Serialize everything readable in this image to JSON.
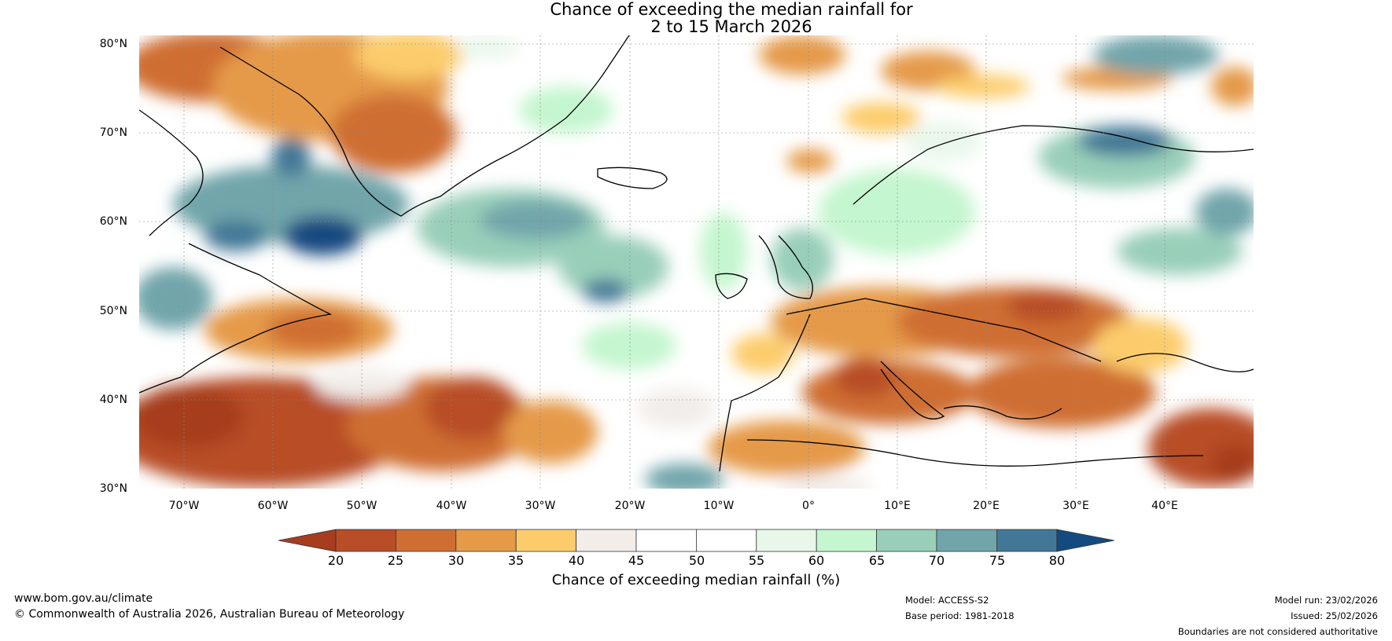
{
  "title": {
    "line1": "Chance of exceeding the median rainfall for",
    "line2": "2 to 15 March 2026"
  },
  "map": {
    "lat_labels": [
      "80°N",
      "70°N",
      "60°N",
      "50°N",
      "40°N",
      "30°N"
    ],
    "lon_labels": [
      "70°W",
      "60°W",
      "50°W",
      "40°W",
      "30°W",
      "20°W",
      "10°W",
      "0°",
      "10°E",
      "20°E",
      "30°E",
      "40°E"
    ],
    "extent": {
      "lon_min": -75,
      "lon_max": 50,
      "lat_min": 30,
      "lat_max": 81
    }
  },
  "legend": {
    "ticks": [
      "20",
      "25",
      "30",
      "35",
      "40",
      "45",
      "50",
      "55",
      "60",
      "65",
      "70",
      "75",
      "80"
    ],
    "colors": [
      "#a63d1f",
      "#b84e27",
      "#cf6e33",
      "#e59a48",
      "#fccc6c",
      "#f2ede9",
      "#ffffff",
      "#ffffff",
      "#e9f7eb",
      "#c4f6cf",
      "#99cfb9",
      "#71a5aa",
      "#427896",
      "#134a80"
    ],
    "label": "Chance of exceeding median rainfall (%)"
  },
  "footer": {
    "website": "www.bom.gov.au/climate",
    "copyright": "© Commonwealth of Australia 2026, Australian Bureau of Meteorology",
    "model": "Model: ACCESS-S2",
    "base_period": "Base period: 1981-2018",
    "model_run": "Model run: 23/02/2026",
    "issued": "Issued: 25/02/2026",
    "disclaimer": "Boundaries are not considered authoritative"
  }
}
